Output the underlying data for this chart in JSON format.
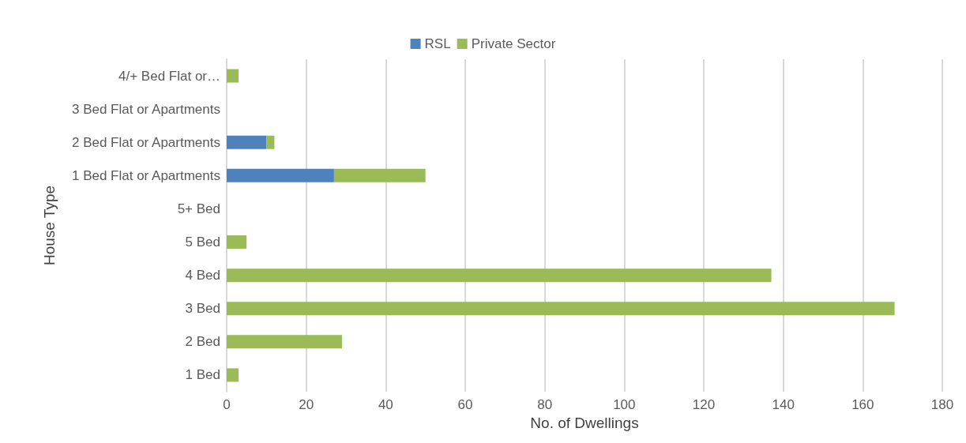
{
  "chart_data": {
    "type": "bar",
    "orientation": "horizontal",
    "stacked": true,
    "categories": [
      "4/+ Bed Flat or…",
      "3 Bed Flat or Apartments",
      "2 Bed Flat or Apartments",
      "1 Bed Flat or Apartments",
      "5+ Bed",
      "5 Bed",
      "4 Bed",
      "3 Bed",
      "2 Bed",
      "1 Bed"
    ],
    "series": [
      {
        "name": "RSL",
        "color": "#4f81bd",
        "values": [
          0,
          0,
          10,
          27,
          0,
          0,
          0,
          0,
          0,
          0
        ]
      },
      {
        "name": "Private Sector",
        "color": "#9bbb59",
        "values": [
          3,
          0,
          2,
          23,
          0,
          5,
          137,
          168,
          29,
          3
        ]
      }
    ],
    "xlim": [
      0,
      180
    ],
    "xticks": [
      0,
      20,
      40,
      60,
      80,
      100,
      120,
      140,
      160,
      180
    ],
    "xlabel": "No. of Dwellings",
    "ylabel": "House Type",
    "grid": "x",
    "legend": "top"
  }
}
